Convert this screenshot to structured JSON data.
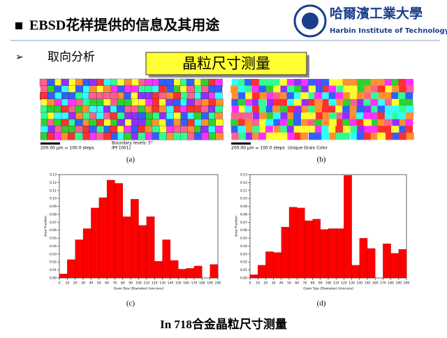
{
  "header": {
    "title": "EBSD花样提供的信息及其用途",
    "logo_cn": "哈爾濱工業大學",
    "logo_en": "Harbin Institute of Technology"
  },
  "bullet": "取向分析",
  "box": "晶粒尺寸测量",
  "maps": [
    {
      "scale": "200.00 µm = 100.0 steps",
      "note": "Boundary levels: 5°",
      "mode": "IPF [001]",
      "caption": "(a)"
    },
    {
      "scale": "200.00 µm = 100.0 steps",
      "mode": "Unique Grain Color",
      "caption": "(b)"
    }
  ],
  "chart_data": [
    {
      "type": "histogram",
      "caption": "(c)",
      "xlabel": "Grain Size (Diameter) [microns]",
      "ylabel": "Area Fraction",
      "color": "#ff0000",
      "bins": [
        0,
        10,
        20,
        30,
        40,
        50,
        60,
        70,
        80,
        90,
        100,
        110,
        120,
        130,
        140,
        150,
        160,
        170,
        180,
        190,
        200
      ],
      "counts": [
        0.005,
        0.023,
        0.048,
        0.062,
        0.088,
        0.101,
        0.123,
        0.119,
        0.077,
        0.099,
        0.066,
        0.077,
        0.021,
        0.048,
        0.022,
        0.011,
        0.012,
        0.015,
        0,
        0.017
      ],
      "xlim": [
        0,
        200
      ],
      "xticks": [
        0,
        10,
        20,
        30,
        40,
        50,
        60,
        70,
        80,
        90,
        100,
        110,
        120,
        130,
        140,
        150,
        160,
        170,
        180,
        190,
        200
      ],
      "ylim": [
        0,
        0.13
      ],
      "yticks": [
        {
          "value": 0,
          "label": "0.00"
        },
        0.01,
        0.02,
        0.03,
        0.04,
        0.05,
        0.06,
        0.07,
        0.08,
        0.09,
        {
          "value": 0.1,
          "label": "0.10"
        },
        0.11,
        0.12,
        0.13
      ]
    },
    {
      "type": "histogram",
      "caption": "(d)",
      "xlabel": "Grain Size (Diameter) [microns]",
      "ylabel": "Area Fraction",
      "color": "#ff0000",
      "bins": [
        0,
        10,
        20,
        30,
        40,
        50,
        60,
        70,
        80,
        90,
        100,
        110,
        120,
        130,
        140,
        150,
        160,
        170,
        180,
        190,
        200
      ],
      "counts": [
        0.004,
        0.016,
        0.033,
        0.032,
        0.064,
        0.089,
        0.088,
        0.072,
        0.074,
        0.061,
        0.062,
        0.062,
        0.129,
        0.016,
        0.05,
        0.037,
        0,
        0.043,
        0.031,
        0.036
      ],
      "xlim": [
        0,
        200
      ],
      "xticks": [
        0,
        10,
        20,
        30,
        40,
        50,
        60,
        70,
        80,
        90,
        100,
        110,
        120,
        130,
        140,
        150,
        160,
        170,
        180,
        190,
        200
      ],
      "ylim": [
        0,
        0.13
      ],
      "yticks": [
        {
          "value": 0,
          "label": "0.00"
        },
        0.01,
        0.02,
        0.03,
        0.04,
        0.05,
        0.06,
        0.07,
        0.08,
        0.09,
        {
          "value": 0.1,
          "label": "0.10"
        },
        0.11,
        0.12,
        0.13
      ]
    }
  ],
  "footer": "In 718合金晶粒尺寸测量"
}
